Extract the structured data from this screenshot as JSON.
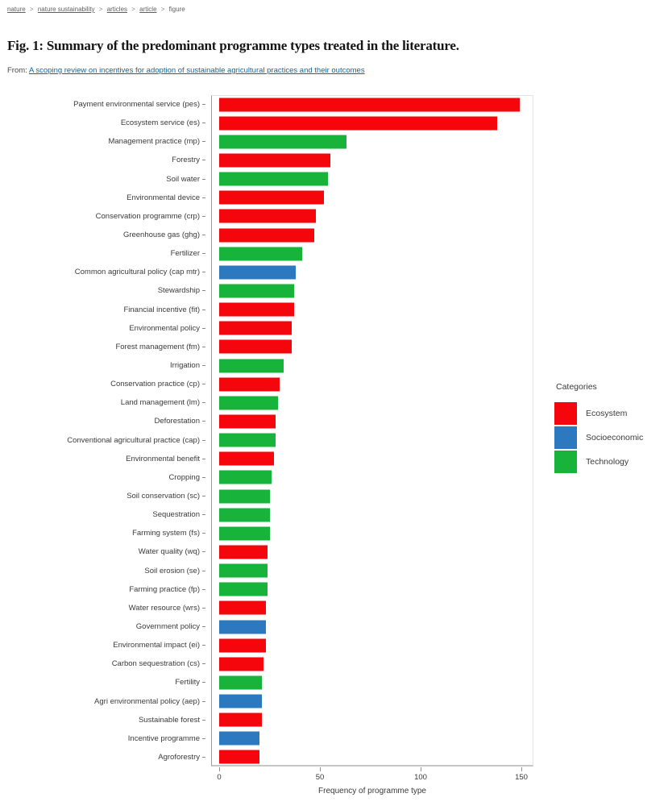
{
  "breadcrumb": {
    "separator": ">",
    "items": [
      {
        "label": "nature"
      },
      {
        "label": "nature sustainability"
      },
      {
        "label": "articles"
      },
      {
        "label": "article"
      },
      {
        "label": "figure"
      }
    ]
  },
  "header": {
    "figure_title": "Fig. 1: Summary of the predominant programme types treated in the literature."
  },
  "source": {
    "prefix": "From:",
    "link_text": "A scoping review on incentives for adoption of sustainable agricultural practices and their outcomes"
  },
  "chart_data": {
    "type": "bar",
    "orientation": "horizontal",
    "xlabel": "Frequency of programme type",
    "x_ticks": [
      0,
      50,
      100,
      150
    ],
    "xlim": [
      0,
      156
    ],
    "grid": false,
    "legend": {
      "position": "right",
      "title": "Categories",
      "items": [
        {
          "name": "Ecosystem",
          "color": "#f5060d"
        },
        {
          "name": "Socioeconomic",
          "color": "#2d79c0"
        },
        {
          "name": "Technology",
          "color": "#17b33b"
        }
      ]
    },
    "bars": [
      {
        "label": "Payment environmental service (pes)",
        "value": 149,
        "category": "Ecosystem"
      },
      {
        "label": "Ecosystem service (es)",
        "value": 138,
        "category": "Ecosystem"
      },
      {
        "label": "Management practice (mp)",
        "value": 63,
        "category": "Technology"
      },
      {
        "label": "Forestry",
        "value": 55,
        "category": "Ecosystem"
      },
      {
        "label": "Soil water",
        "value": 54,
        "category": "Technology"
      },
      {
        "label": "Environmental device",
        "value": 52,
        "category": "Ecosystem"
      },
      {
        "label": "Conservation programme (crp)",
        "value": 48,
        "category": "Ecosystem"
      },
      {
        "label": "Greenhouse gas (ghg)",
        "value": 47,
        "category": "Ecosystem"
      },
      {
        "label": "Fertilizer",
        "value": 41,
        "category": "Technology"
      },
      {
        "label": "Common agricultural policy (cap mtr)",
        "value": 38,
        "category": "Socioeconomic"
      },
      {
        "label": "Stewardship",
        "value": 37,
        "category": "Technology"
      },
      {
        "label": "Financial incentive (fit)",
        "value": 37,
        "category": "Ecosystem"
      },
      {
        "label": "Environmental policy",
        "value": 36,
        "category": "Ecosystem"
      },
      {
        "label": "Forest management (fm)",
        "value": 36,
        "category": "Ecosystem"
      },
      {
        "label": "Irrigation",
        "value": 32,
        "category": "Technology"
      },
      {
        "label": "Conservation practice (cp)",
        "value": 30,
        "category": "Ecosystem"
      },
      {
        "label": "Land management (lm)",
        "value": 29,
        "category": "Technology"
      },
      {
        "label": "Deforestation",
        "value": 28,
        "category": "Ecosystem"
      },
      {
        "label": "Conventional agricultural practice (cap)",
        "value": 28,
        "category": "Technology"
      },
      {
        "label": "Environmental benefit",
        "value": 27,
        "category": "Ecosystem"
      },
      {
        "label": "Cropping",
        "value": 26,
        "category": "Technology"
      },
      {
        "label": "Soil conservation (sc)",
        "value": 25,
        "category": "Technology"
      },
      {
        "label": "Sequestration",
        "value": 25,
        "category": "Technology"
      },
      {
        "label": "Farming system (fs)",
        "value": 25,
        "category": "Technology"
      },
      {
        "label": "Water quality (wq)",
        "value": 24,
        "category": "Ecosystem"
      },
      {
        "label": "Soil erosion (se)",
        "value": 24,
        "category": "Technology"
      },
      {
        "label": "Farming practice (fp)",
        "value": 24,
        "category": "Technology"
      },
      {
        "label": "Water resource (wrs)",
        "value": 23,
        "category": "Ecosystem"
      },
      {
        "label": "Government policy",
        "value": 23,
        "category": "Socioeconomic"
      },
      {
        "label": "Environmental impact (ei)",
        "value": 23,
        "category": "Ecosystem"
      },
      {
        "label": "Carbon sequestration (cs)",
        "value": 22,
        "category": "Ecosystem"
      },
      {
        "label": "Fertility",
        "value": 21,
        "category": "Technology"
      },
      {
        "label": "Agri environmental policy (aep)",
        "value": 21,
        "category": "Socioeconomic"
      },
      {
        "label": "Sustainable forest",
        "value": 21,
        "category": "Ecosystem"
      },
      {
        "label": "Incentive programme",
        "value": 20,
        "category": "Socioeconomic"
      },
      {
        "label": "Agroforestry",
        "value": 20,
        "category": "Ecosystem"
      }
    ]
  }
}
